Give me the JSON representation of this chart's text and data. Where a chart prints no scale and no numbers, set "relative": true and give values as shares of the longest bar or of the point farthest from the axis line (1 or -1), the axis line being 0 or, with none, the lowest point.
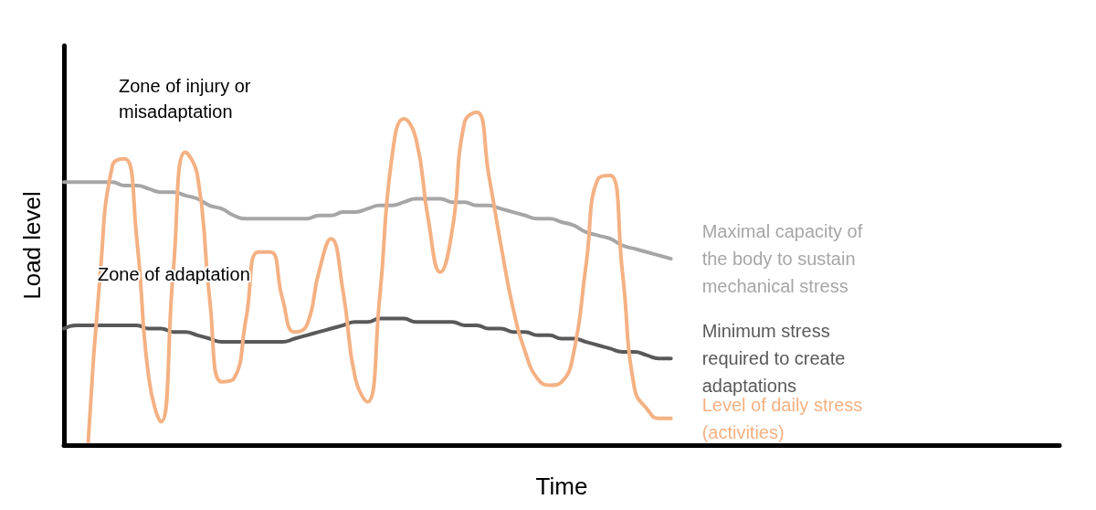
{
  "chart_data": {
    "type": "line",
    "relative": true,
    "xlabel": "Time",
    "ylabel": "Load level",
    "tick_labels": false,
    "grid": false,
    "legend": false,
    "marker": "none",
    "line_style": "solid",
    "categories": [
      null,
      null,
      null,
      null,
      null,
      null,
      null,
      null,
      null,
      null,
      null,
      null,
      null,
      null,
      null,
      null,
      null,
      null,
      null,
      null,
      null,
      null,
      null,
      null,
      null,
      null,
      null,
      null,
      null,
      null,
      null,
      null,
      null,
      null,
      null,
      null,
      null,
      null,
      null,
      null,
      null,
      null,
      null,
      null,
      null,
      null,
      null,
      null,
      null,
      null,
      null,
      null,
      null,
      null,
      null,
      null,
      null,
      null,
      null,
      null,
      null,
      null,
      null,
      null,
      null,
      null,
      null,
      null,
      null,
      null,
      null,
      null,
      null,
      null,
      null,
      null,
      null,
      null,
      null,
      null,
      null,
      null,
      null
    ],
    "annotations": [
      "Zone of injury or misadaptation",
      "Zone of adaptation"
    ],
    "series": [
      {
        "name": "Maximal capacity of the body to sustain mechanical stress",
        "color": "#a6a6a6",
        "values": [
          0.79,
          0.79,
          0.79,
          0.79,
          0.79,
          0.78,
          0.78,
          0.77,
          0.76,
          0.76,
          0.75,
          0.74,
          0.72,
          0.71,
          0.69,
          0.68,
          0.68,
          0.68,
          0.68,
          0.68,
          0.68,
          0.69,
          0.69,
          0.7,
          0.7,
          0.71,
          0.72,
          0.72,
          0.73,
          0.74,
          0.74,
          0.74,
          0.73,
          0.73,
          0.72,
          0.72,
          0.71,
          0.7,
          0.69,
          0.68,
          0.68,
          0.67,
          0.66,
          0.64,
          0.63,
          0.62,
          0.6,
          0.59,
          0.58,
          0.57,
          0.56,
          null,
          null,
          null,
          null,
          null,
          null,
          null,
          null,
          null,
          null,
          null,
          null,
          null,
          null,
          null,
          null,
          null,
          null,
          null,
          null,
          null,
          null,
          null,
          null,
          null,
          null,
          null,
          null,
          null,
          null,
          null,
          null
        ]
      },
      {
        "name": "Minimum stress required to create adaptations",
        "color": "#595959",
        "values": [
          0.35,
          0.36,
          0.36,
          0.36,
          0.36,
          0.36,
          0.36,
          0.35,
          0.35,
          0.34,
          0.34,
          0.33,
          0.32,
          0.31,
          0.31,
          0.31,
          0.31,
          0.31,
          0.31,
          0.32,
          0.33,
          0.34,
          0.35,
          0.36,
          0.37,
          0.37,
          0.38,
          0.38,
          0.38,
          0.37,
          0.37,
          0.37,
          0.37,
          0.36,
          0.36,
          0.35,
          0.35,
          0.34,
          0.34,
          0.33,
          0.33,
          0.32,
          0.32,
          0.31,
          0.3,
          0.29,
          0.28,
          0.28,
          0.27,
          0.26,
          0.26,
          null,
          null,
          null,
          null,
          null,
          null,
          null,
          null,
          null,
          null,
          null,
          null,
          null,
          null,
          null,
          null,
          null,
          null,
          null,
          null,
          null,
          null,
          null,
          null,
          null,
          null,
          null,
          null,
          null,
          null,
          null,
          null
        ]
      },
      {
        "name": "Level of daily stress (activities)",
        "color": "#f4b183",
        "values": [
          null,
          null,
          0.01,
          0.52,
          0.84,
          0.86,
          0.62,
          0.2,
          0.07,
          0.52,
          0.88,
          0.81,
          0.44,
          0.19,
          0.2,
          0.38,
          0.58,
          0.58,
          0.44,
          0.34,
          0.36,
          0.52,
          0.62,
          0.46,
          0.2,
          0.13,
          0.44,
          0.86,
          0.98,
          0.92,
          0.68,
          0.52,
          0.65,
          0.97,
          1,
          0.81,
          0.6,
          0.41,
          0.28,
          0.2,
          0.18,
          0.19,
          0.28,
          0.54,
          0.8,
          0.81,
          0.52,
          0.17,
          0.11,
          0.08,
          0.08,
          null,
          null,
          null,
          null,
          null,
          null,
          null,
          null,
          null,
          null,
          null,
          null,
          null,
          null,
          null,
          null,
          null,
          null,
          null,
          null,
          null,
          null,
          null,
          null,
          null,
          null,
          null,
          null,
          null,
          null,
          null,
          null
        ]
      }
    ]
  }
}
